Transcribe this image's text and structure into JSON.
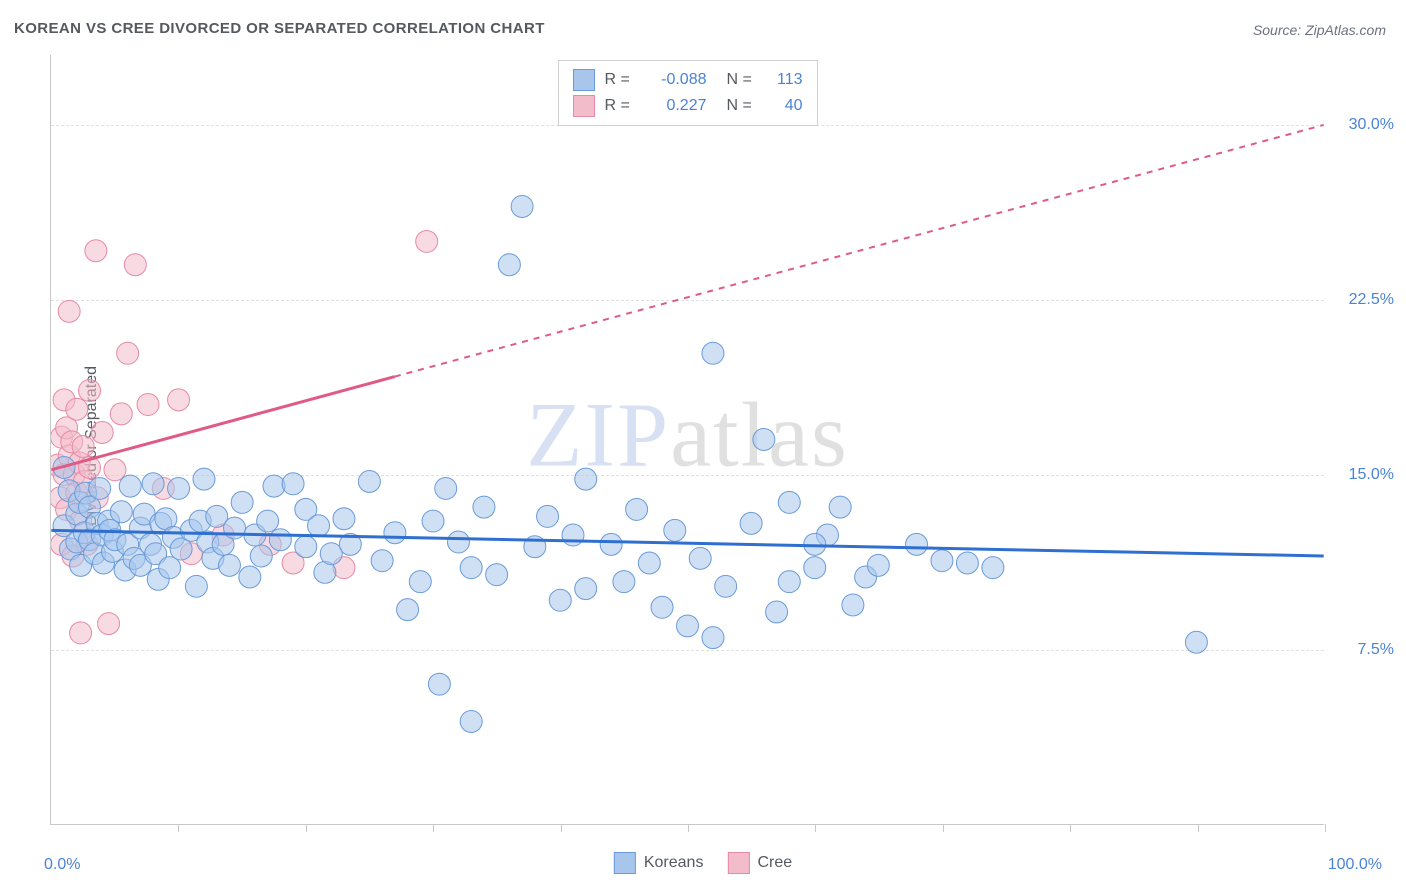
{
  "title": "KOREAN VS CREE DIVORCED OR SEPARATED CORRELATION CHART",
  "source": "Source: ZipAtlas.com",
  "watermark": {
    "part1": "ZIP",
    "part2": "atlas"
  },
  "chart": {
    "type": "scatter",
    "y_axis_title": "Divorced or Separated",
    "background_color": "#ffffff",
    "grid_color": "#e0e0e0",
    "axis_color": "#c8c8c8",
    "xlim": [
      0,
      100
    ],
    "ylim": [
      0,
      33
    ],
    "x_min_label": "0.0%",
    "x_max_label": "100.0%",
    "x_ticks_percent": [
      10,
      20,
      30,
      40,
      50,
      60,
      70,
      80,
      90,
      100
    ],
    "y_ticks": [
      {
        "value": 7.5,
        "label": "7.5%"
      },
      {
        "value": 15.0,
        "label": "15.0%"
      },
      {
        "value": 22.5,
        "label": "22.5%"
      },
      {
        "value": 30.0,
        "label": "30.0%"
      }
    ],
    "marker_radius": 11,
    "marker_opacity": 0.55,
    "line_width_solid": 3,
    "line_width_dashed": 2,
    "dash_pattern": "6,6",
    "series": [
      {
        "name": "Koreans",
        "fill_color": "#a8c6ec",
        "stroke_color": "#6a9bd8",
        "line_color": "#2f6fd0",
        "r_value": "-0.088",
        "n_value": "113",
        "trend_solid": {
          "x1": 0,
          "y1": 12.6,
          "x2": 100,
          "y2": 11.5
        },
        "trend_dashed": null,
        "points": [
          [
            1,
            12.8
          ],
          [
            1,
            15.3
          ],
          [
            1.4,
            14.3
          ],
          [
            1.5,
            11.8
          ],
          [
            2,
            13.3
          ],
          [
            2,
            12.1
          ],
          [
            2.2,
            13.8
          ],
          [
            2.3,
            11.1
          ],
          [
            2.6,
            12.5
          ],
          [
            2.7,
            14.2
          ],
          [
            3,
            12.2
          ],
          [
            3,
            13.6
          ],
          [
            3.4,
            11.6
          ],
          [
            3.6,
            12.9
          ],
          [
            3.8,
            14.4
          ],
          [
            4,
            12.4
          ],
          [
            4.1,
            11.2
          ],
          [
            4.5,
            13.0
          ],
          [
            4.6,
            12.6
          ],
          [
            4.8,
            11.7
          ],
          [
            5,
            12.2
          ],
          [
            5.5,
            13.4
          ],
          [
            5.8,
            10.9
          ],
          [
            6,
            12.0
          ],
          [
            6.2,
            14.5
          ],
          [
            6.5,
            11.4
          ],
          [
            7,
            12.7
          ],
          [
            7,
            11.1
          ],
          [
            7.3,
            13.3
          ],
          [
            7.8,
            12.0
          ],
          [
            8,
            14.6
          ],
          [
            8.2,
            11.6
          ],
          [
            8.4,
            10.5
          ],
          [
            8.6,
            12.9
          ],
          [
            9,
            13.1
          ],
          [
            9.3,
            11.0
          ],
          [
            9.6,
            12.3
          ],
          [
            10,
            14.4
          ],
          [
            10.2,
            11.8
          ],
          [
            11,
            12.6
          ],
          [
            11.4,
            10.2
          ],
          [
            11.7,
            13.0
          ],
          [
            12,
            14.8
          ],
          [
            12.3,
            12.1
          ],
          [
            12.7,
            11.4
          ],
          [
            13,
            13.2
          ],
          [
            13.5,
            12.0
          ],
          [
            14,
            11.1
          ],
          [
            14.4,
            12.7
          ],
          [
            15,
            13.8
          ],
          [
            15.6,
            10.6
          ],
          [
            16,
            12.4
          ],
          [
            16.5,
            11.5
          ],
          [
            17,
            13.0
          ],
          [
            17.5,
            14.5
          ],
          [
            18,
            12.2
          ],
          [
            19,
            14.6
          ],
          [
            20,
            11.9
          ],
          [
            20,
            13.5
          ],
          [
            21,
            12.8
          ],
          [
            21.5,
            10.8
          ],
          [
            22,
            11.6
          ],
          [
            23,
            13.1
          ],
          [
            23.5,
            12.0
          ],
          [
            25,
            14.7
          ],
          [
            26,
            11.3
          ],
          [
            27,
            12.5
          ],
          [
            28,
            9.2
          ],
          [
            29,
            10.4
          ],
          [
            30,
            13.0
          ],
          [
            30.5,
            6.0
          ],
          [
            31,
            14.4
          ],
          [
            32,
            12.1
          ],
          [
            33,
            11.0
          ],
          [
            33,
            4.4
          ],
          [
            34,
            13.6
          ],
          [
            35,
            10.7
          ],
          [
            36,
            24.0
          ],
          [
            37,
            26.5
          ],
          [
            38,
            11.9
          ],
          [
            39,
            13.2
          ],
          [
            40,
            9.6
          ],
          [
            41,
            12.4
          ],
          [
            42,
            14.8
          ],
          [
            42,
            10.1
          ],
          [
            44,
            12.0
          ],
          [
            45,
            10.4
          ],
          [
            46,
            13.5
          ],
          [
            47,
            11.2
          ],
          [
            48,
            9.3
          ],
          [
            49,
            12.6
          ],
          [
            50,
            8.5
          ],
          [
            51,
            11.4
          ],
          [
            52,
            20.2
          ],
          [
            53,
            10.2
          ],
          [
            55,
            12.9
          ],
          [
            56,
            16.5
          ],
          [
            57,
            9.1
          ],
          [
            58,
            13.8
          ],
          [
            60,
            11.0
          ],
          [
            61,
            12.4
          ],
          [
            62,
            13.6
          ],
          [
            63,
            9.4
          ],
          [
            64,
            10.6
          ],
          [
            65,
            11.1
          ],
          [
            68,
            12.0
          ],
          [
            70,
            11.3
          ],
          [
            72,
            11.2
          ],
          [
            74,
            11.0
          ],
          [
            90,
            7.8
          ],
          [
            58,
            10.4
          ],
          [
            60,
            12.0
          ],
          [
            52,
            8.0
          ]
        ]
      },
      {
        "name": "Cree",
        "fill_color": "#f3bccb",
        "stroke_color": "#e68aa5",
        "line_color": "#e05a86",
        "r_value": "0.227",
        "n_value": "40",
        "trend_solid": {
          "x1": 0,
          "y1": 15.2,
          "x2": 27,
          "y2": 19.2
        },
        "trend_dashed": {
          "x1": 27,
          "y1": 19.2,
          "x2": 100,
          "y2": 30.0
        },
        "points": [
          [
            0.5,
            15.4
          ],
          [
            0.7,
            14.0
          ],
          [
            0.8,
            16.6
          ],
          [
            0.8,
            12.0
          ],
          [
            1.0,
            15.0
          ],
          [
            1.0,
            18.2
          ],
          [
            1.2,
            13.5
          ],
          [
            1.2,
            17.0
          ],
          [
            1.4,
            15.8
          ],
          [
            1.4,
            22.0
          ],
          [
            1.6,
            16.4
          ],
          [
            1.7,
            11.5
          ],
          [
            1.8,
            15.0
          ],
          [
            2.0,
            14.2
          ],
          [
            2.0,
            17.8
          ],
          [
            2.2,
            15.5
          ],
          [
            2.3,
            13.0
          ],
          [
            2.3,
            8.2
          ],
          [
            2.5,
            16.2
          ],
          [
            2.6,
            14.7
          ],
          [
            2.8,
            12.0
          ],
          [
            3.0,
            18.6
          ],
          [
            3.0,
            15.3
          ],
          [
            3.5,
            24.6
          ],
          [
            3.6,
            14.0
          ],
          [
            4.0,
            16.8
          ],
          [
            4.5,
            8.6
          ],
          [
            5.0,
            15.2
          ],
          [
            5.5,
            17.6
          ],
          [
            6.0,
            20.2
          ],
          [
            6.6,
            24.0
          ],
          [
            7.6,
            18.0
          ],
          [
            8.8,
            14.4
          ],
          [
            10.0,
            18.2
          ],
          [
            11.0,
            11.6
          ],
          [
            13.5,
            12.4
          ],
          [
            17.2,
            12.0
          ],
          [
            19.0,
            11.2
          ],
          [
            23.0,
            11.0
          ],
          [
            29.5,
            25.0
          ]
        ]
      }
    ],
    "bottom_legend": [
      {
        "label": "Koreans",
        "fill": "#a8c6ec",
        "stroke": "#6a9bd8"
      },
      {
        "label": "Cree",
        "fill": "#f3bccb",
        "stroke": "#e68aa5"
      }
    ]
  }
}
